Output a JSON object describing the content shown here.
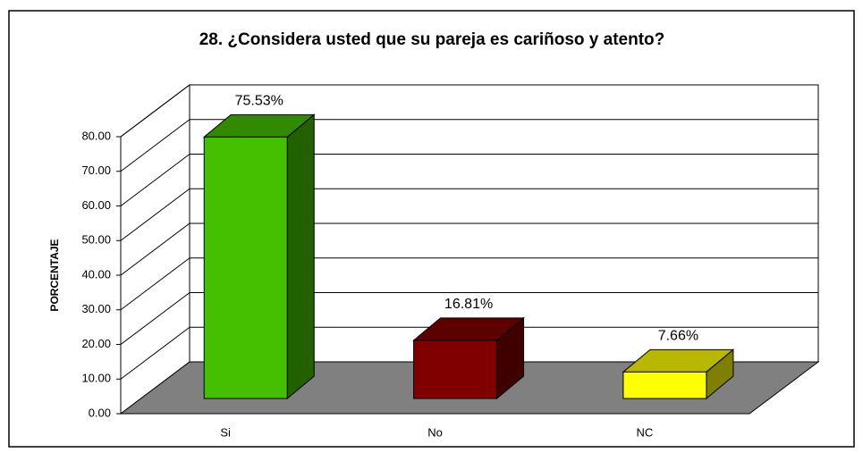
{
  "chart_data": {
    "type": "bar3d",
    "title": "28. ¿Considera usted que su pareja es cariñoso y atento?",
    "y_label": "PORCENTAJE",
    "categories": [
      "Si",
      "No",
      "NC"
    ],
    "values": [
      75.53,
      16.81,
      7.66
    ],
    "value_labels": [
      "75.53%",
      "16.81%",
      "7.66%"
    ],
    "colors": [
      "#44c000",
      "#800000",
      "#ffff00"
    ],
    "ylim": [
      0,
      80
    ],
    "yticks": [
      {
        "value": 0,
        "label": "0.00"
      },
      {
        "value": 10,
        "label": "10.00"
      },
      {
        "value": 20,
        "label": "20.00"
      },
      {
        "value": 30,
        "label": "30.00"
      },
      {
        "value": 40,
        "label": "40.00"
      },
      {
        "value": 50,
        "label": "50.00"
      },
      {
        "value": 60,
        "label": "60.00"
      },
      {
        "value": 70,
        "label": "70.00"
      },
      {
        "value": 80,
        "label": "80.00"
      }
    ],
    "grid": true
  }
}
